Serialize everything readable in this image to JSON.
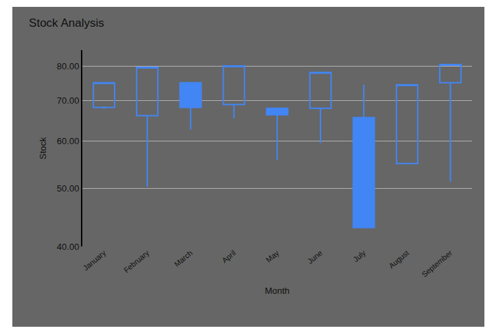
{
  "chart_data": {
    "type": "candlestick",
    "title": "Stock Analysis",
    "x_label": "Month",
    "y_label": "Stock",
    "categories": [
      "January",
      "February",
      "March",
      "April",
      "May",
      "June",
      "July",
      "August",
      "September"
    ],
    "open": [
      68.2,
      66.1,
      75.0,
      69.0,
      68.0,
      68.0,
      65.6,
      55.0,
      75.0
    ],
    "high": [
      75.0,
      79.6,
      75.0,
      80.0,
      68.0,
      78.0,
      74.4,
      74.4,
      80.4
    ],
    "low": [
      67.8,
      50.3,
      62.7,
      65.4,
      55.8,
      59.5,
      43.0,
      55.0,
      51.3
    ],
    "close": [
      75.0,
      79.6,
      68.2,
      80.0,
      66.3,
      78.0,
      43.0,
      74.4,
      80.4
    ],
    "color": "#4285f4",
    "log": "y",
    "ylim": [
      40,
      85
    ],
    "yticks": [
      {
        "value": 40,
        "label": "40.00"
      },
      {
        "value": 50,
        "label": "50.00"
      },
      {
        "value": 60,
        "label": "60.00"
      },
      {
        "value": 70,
        "label": "70.00"
      },
      {
        "value": 80,
        "label": "80.00"
      }
    ],
    "grid": true
  }
}
